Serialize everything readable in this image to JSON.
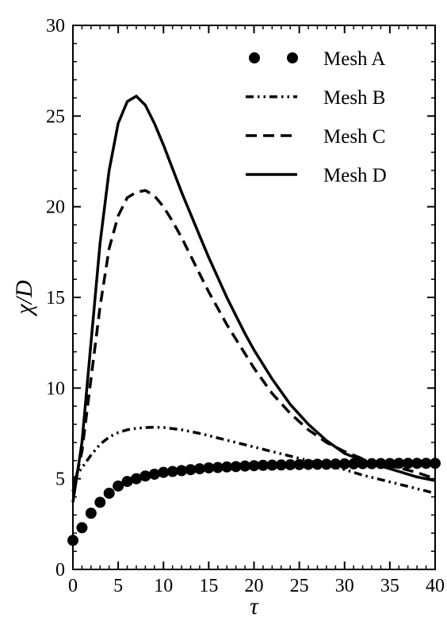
{
  "chart_data": {
    "type": "line",
    "xlabel": "τ",
    "ylabel": "χ/D",
    "xlim": [
      0,
      40
    ],
    "ylim": [
      0,
      30
    ],
    "xticks": [
      0,
      5,
      10,
      15,
      20,
      25,
      30,
      35,
      40
    ],
    "yticks": [
      0,
      5,
      10,
      15,
      20,
      25,
      30
    ],
    "grid": false,
    "legend": "top-right",
    "series": [
      {
        "name": "Mesh A",
        "style": "dots",
        "color": "#000000",
        "x": [
          0,
          1,
          2,
          3,
          4,
          5,
          6,
          7,
          8,
          9,
          10,
          11,
          12,
          13,
          14,
          15,
          16,
          17,
          18,
          19,
          20,
          21,
          22,
          23,
          24,
          25,
          26,
          27,
          28,
          29,
          30,
          31,
          32,
          33,
          34,
          35,
          36,
          37,
          38,
          39,
          40
        ],
        "y": [
          1.6,
          2.3,
          3.1,
          3.7,
          4.2,
          4.6,
          4.85,
          5.0,
          5.15,
          5.25,
          5.35,
          5.4,
          5.45,
          5.5,
          5.55,
          5.6,
          5.62,
          5.65,
          5.67,
          5.7,
          5.72,
          5.74,
          5.75,
          5.76,
          5.77,
          5.78,
          5.79,
          5.8,
          5.8,
          5.81,
          5.82,
          5.82,
          5.83,
          5.83,
          5.84,
          5.84,
          5.85,
          5.85,
          5.85,
          5.85,
          5.85
        ]
      },
      {
        "name": "Mesh B",
        "style": "dash-dot-dot",
        "color": "#000000",
        "x": [
          0,
          1,
          2,
          3,
          4,
          5,
          6,
          7,
          8,
          9,
          10,
          12,
          14,
          16,
          18,
          20,
          22,
          24,
          26,
          28,
          30,
          32,
          34,
          36,
          38,
          40
        ],
        "y": [
          4.9,
          5.6,
          6.3,
          6.9,
          7.3,
          7.55,
          7.7,
          7.78,
          7.82,
          7.84,
          7.83,
          7.7,
          7.5,
          7.25,
          7.0,
          6.75,
          6.5,
          6.25,
          6.0,
          5.75,
          5.5,
          5.2,
          4.95,
          4.7,
          4.45,
          4.2
        ]
      },
      {
        "name": "Mesh C",
        "style": "dashed",
        "color": "#000000",
        "x": [
          0,
          1,
          2,
          3,
          4,
          5,
          6,
          7,
          8,
          9,
          10,
          11,
          12,
          13,
          14,
          15,
          16,
          17,
          18,
          19,
          20,
          22,
          24,
          26,
          28,
          30,
          32,
          34,
          36,
          38,
          40
        ],
        "y": [
          4.3,
          6.5,
          10.5,
          14.5,
          17.7,
          19.5,
          20.5,
          20.8,
          20.9,
          20.6,
          20.0,
          19.2,
          18.3,
          17.3,
          16.3,
          15.3,
          14.4,
          13.5,
          12.7,
          11.9,
          11.1,
          9.7,
          8.6,
          7.7,
          7.0,
          6.5,
          6.1,
          5.8,
          5.6,
          5.35,
          5.0
        ]
      },
      {
        "name": "Mesh D",
        "style": "solid",
        "color": "#000000",
        "x": [
          0,
          1,
          2,
          3,
          4,
          5,
          6,
          7,
          8,
          9,
          10,
          11,
          12,
          13,
          14,
          15,
          16,
          17,
          18,
          19,
          20,
          22,
          24,
          26,
          28,
          30,
          32,
          34,
          36,
          38,
          40
        ],
        "y": [
          3.7,
          7.0,
          12.5,
          18.0,
          22.0,
          24.6,
          25.8,
          26.1,
          25.6,
          24.6,
          23.4,
          22.1,
          20.8,
          19.6,
          18.4,
          17.2,
          16.1,
          15.0,
          14.0,
          13.0,
          12.1,
          10.5,
          9.1,
          8.0,
          7.1,
          6.4,
          6.0,
          5.7,
          5.4,
          5.1,
          4.9
        ]
      }
    ]
  }
}
